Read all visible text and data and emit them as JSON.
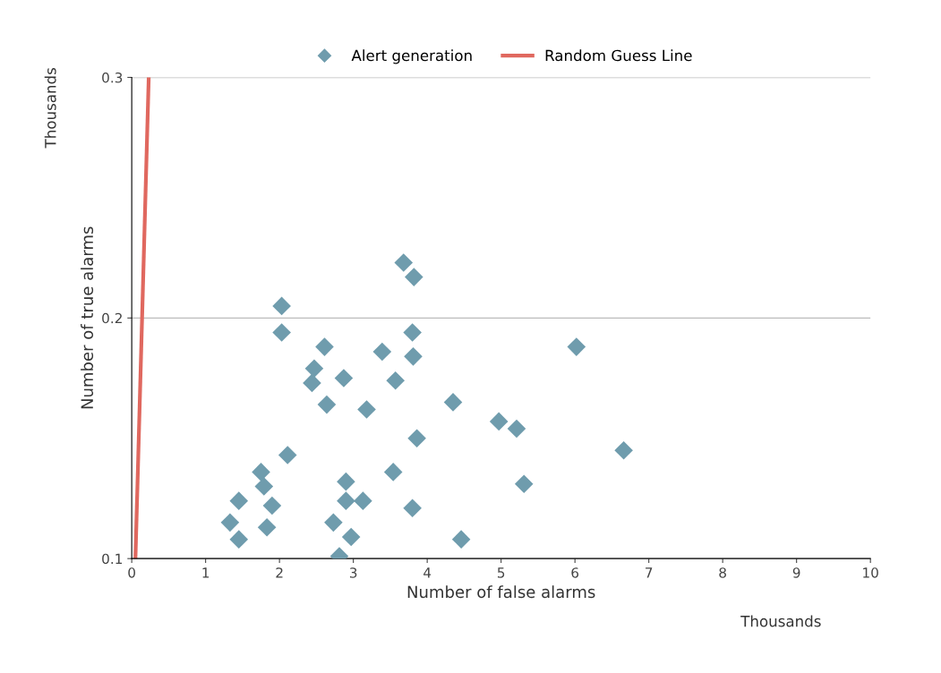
{
  "chart_data": {
    "type": "scatter",
    "xlabel": "Number of false alarms",
    "ylabel": "Number of true alarms",
    "annotations": [
      "Thousands",
      "Thousands"
    ],
    "xlim": [
      0,
      10
    ],
    "xticks": [
      0,
      1,
      2,
      3,
      4,
      5,
      6,
      7,
      8,
      9,
      10
    ],
    "ylim": [
      0.1,
      0.3
    ],
    "yticks": [
      0.1,
      0.2,
      0.3
    ],
    "grid": "y",
    "legend": "top",
    "series": [
      {
        "name": "Alert generation",
        "marker": "diamond",
        "color": "#6f9cad",
        "x": [
          1.33,
          1.45,
          1.45,
          1.75,
          1.79,
          1.83,
          1.9,
          2.03,
          2.03,
          2.11,
          2.44,
          2.47,
          2.61,
          2.64,
          2.73,
          2.81,
          2.87,
          2.9,
          2.9,
          2.97,
          3.13,
          3.18,
          3.39,
          3.57,
          3.54,
          3.68,
          3.82,
          3.8,
          3.81,
          3.86,
          3.8,
          4.35,
          4.46,
          4.97,
          5.21,
          5.31,
          6.02,
          6.66
        ],
        "values": [
          0.115,
          0.108,
          0.124,
          0.136,
          0.13,
          0.113,
          0.122,
          0.205,
          0.194,
          0.143,
          0.173,
          0.179,
          0.188,
          0.164,
          0.115,
          0.101,
          0.175,
          0.132,
          0.124,
          0.109,
          0.124,
          0.162,
          0.186,
          0.174,
          0.136,
          0.223,
          0.217,
          0.194,
          0.184,
          0.15,
          0.121,
          0.165,
          0.108,
          0.157,
          0.154,
          0.131,
          0.188,
          0.145
        ]
      },
      {
        "name": "Random Guess Line",
        "type": "line",
        "marker": "none",
        "color": "#e0685f",
        "x": [
          0.05,
          0.23
        ],
        "values": [
          0.1,
          0.3
        ]
      }
    ]
  }
}
